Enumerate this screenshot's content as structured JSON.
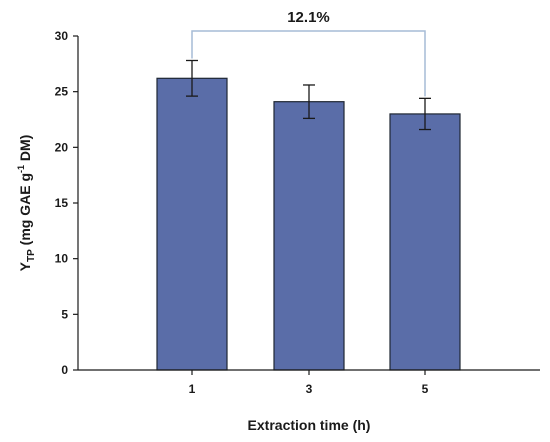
{
  "chart_data": {
    "type": "bar",
    "categories": [
      "1",
      "3",
      "5"
    ],
    "values": [
      26.2,
      24.1,
      23.0
    ],
    "errors": [
      1.6,
      1.5,
      1.4
    ],
    "xlabel": "Extraction time (h)",
    "ylabel": {
      "base": "Y",
      "subscript": "TP",
      "unit_pre": " (mg GAE g",
      "superscript": "-1",
      "unit_post": " DM)"
    },
    "ylim": [
      0,
      30
    ],
    "yticks": [
      "0",
      "5",
      "10",
      "15",
      "20",
      "25",
      "30"
    ],
    "annotation": {
      "text": "12.1%",
      "from_category": "1",
      "to_category": "5"
    },
    "bar_color": "#5a6da8",
    "bar_edge_color": "#1f2733",
    "bracket_color": "#a6bcd6",
    "grid": false,
    "legend": "none"
  }
}
